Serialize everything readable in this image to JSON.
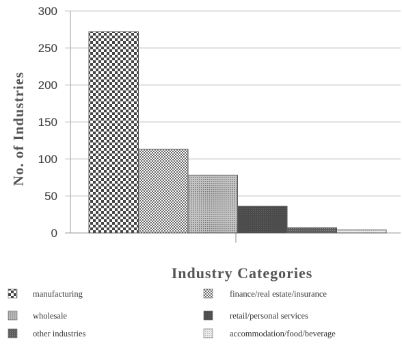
{
  "chart_data": {
    "type": "bar",
    "title": "",
    "xlabel": "Industry Categories",
    "ylabel": "No. of Industries",
    "ylim": [
      0,
      300
    ],
    "yticks": [
      "0",
      "50",
      "100",
      "150",
      "200",
      "250",
      "300"
    ],
    "grid": true,
    "legend_position": "bottom",
    "categories": [
      "manufacturing",
      "finance/real estate/insurance",
      "wholesale",
      "retail/personal services",
      "other industries",
      "accommodation/food/beverage"
    ],
    "values": [
      272,
      113,
      78,
      36,
      7,
      4
    ],
    "bar_order": [
      0,
      1,
      2,
      3,
      4,
      5
    ],
    "patterns": [
      "checker-coarse",
      "crosshatch",
      "dots-medium",
      "dark-solid",
      "dark-dense",
      "dots-light"
    ],
    "colors": {
      "checker-coarse": "#444444",
      "crosshatch": "#6a6a6a",
      "dots-medium": "#8c8c8c",
      "dark-solid": "#4b4b4b",
      "dark-dense": "#5e5e5e",
      "dots-light": "#cfcfcf"
    }
  }
}
